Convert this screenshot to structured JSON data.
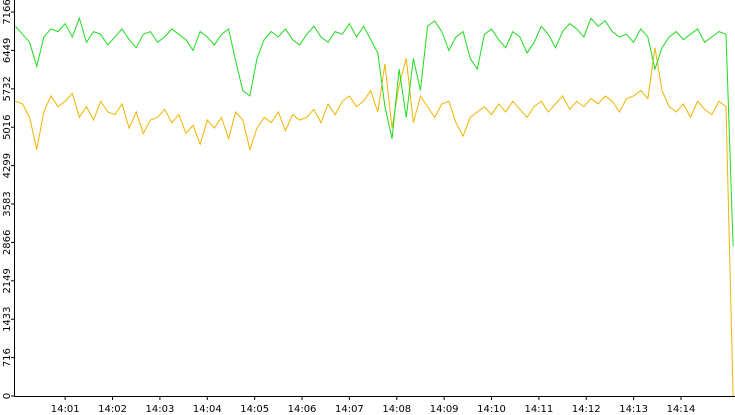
{
  "chart_data": {
    "type": "line",
    "x": [
      -0.05,
      0.1,
      0.25,
      0.4,
      0.55,
      0.7,
      0.85,
      1,
      1.15,
      1.3,
      1.45,
      1.6,
      1.75,
      1.9,
      2.05,
      2.2,
      2.35,
      2.5,
      2.65,
      2.8,
      2.95,
      3.1,
      3.25,
      3.4,
      3.55,
      3.7,
      3.85,
      4,
      4.15,
      4.3,
      4.45,
      4.6,
      4.75,
      4.9,
      5.05,
      5.2,
      5.35,
      5.5,
      5.65,
      5.8,
      5.95,
      6.1,
      6.25,
      6.4,
      6.55,
      6.7,
      6.85,
      7,
      7.15,
      7.3,
      7.45,
      7.6,
      7.75,
      7.9,
      8.05,
      8.2,
      8.35,
      8.5,
      8.65,
      8.8,
      8.95,
      9.1,
      9.25,
      9.4,
      9.55,
      9.7,
      9.85,
      10,
      10.15,
      10.3,
      10.45,
      10.6,
      10.75,
      10.9,
      11.05,
      11.2,
      11.35,
      11.5,
      11.65,
      11.8,
      11.95,
      12.1,
      12.25,
      12.4,
      12.55,
      12.7,
      12.85,
      13,
      13.15,
      13.3,
      13.45,
      13.6,
      13.75,
      13.9,
      14.05,
      14.2,
      14.35,
      14.5,
      14.65,
      14.8,
      14.95,
      15.1
    ],
    "series": [
      {
        "color": "#f0b400",
        "values": [
          5500,
          5450,
          5200,
          4600,
          5300,
          5600,
          5400,
          5500,
          5650,
          5200,
          5400,
          5150,
          5500,
          5300,
          5250,
          5450,
          5000,
          5300,
          4900,
          5150,
          5200,
          5350,
          5100,
          5250,
          4900,
          5050,
          4700,
          5150,
          5000,
          5200,
          4800,
          5300,
          5150,
          4600,
          5000,
          5200,
          5100,
          5300,
          4950,
          5250,
          5150,
          5200,
          5350,
          5100,
          5450,
          5250,
          5500,
          5600,
          5400,
          5500,
          5700,
          5300,
          6200,
          5000,
          5800,
          6300,
          5100,
          5600,
          5400,
          5200,
          5450,
          5500,
          5100,
          4850,
          5200,
          5300,
          5400,
          5250,
          5450,
          5300,
          5500,
          5350,
          5200,
          5400,
          5500,
          5300,
          5450,
          5600,
          5350,
          5500,
          5400,
          5550,
          5450,
          5600,
          5500,
          5300,
          5550,
          5600,
          5700,
          5550,
          6500,
          5700,
          5400,
          5300,
          5450,
          5200,
          5500,
          5350,
          5250,
          5500,
          5400,
          0
        ]
      },
      {
        "color": "#1edc1e",
        "values": [
          6900,
          6750,
          6600,
          6150,
          6700,
          6850,
          6800,
          6950,
          6700,
          7050,
          6600,
          6800,
          6750,
          6550,
          6700,
          6850,
          6650,
          6500,
          6750,
          6800,
          6600,
          6700,
          6850,
          6750,
          6650,
          6450,
          6800,
          6700,
          6550,
          6750,
          6850,
          6250,
          5700,
          5600,
          6300,
          6650,
          6800,
          6700,
          6850,
          6650,
          6550,
          6750,
          6900,
          6700,
          6600,
          6800,
          6750,
          6950,
          6700,
          6900,
          6650,
          6400,
          5400,
          4800,
          6100,
          5200,
          6300,
          5700,
          6900,
          7000,
          6800,
          6450,
          6700,
          6800,
          6300,
          6100,
          6750,
          6850,
          6650,
          6500,
          6800,
          6700,
          6400,
          6600,
          6900,
          6750,
          6500,
          6800,
          6950,
          6850,
          6700,
          7050,
          6900,
          7000,
          6800,
          6700,
          6750,
          6600,
          6850,
          6700,
          6100,
          6500,
          6700,
          6800,
          6650,
          6750,
          6850,
          6600,
          6700,
          6800,
          6750,
          2800
        ]
      }
    ],
    "xlim": [
      -0.08,
      15.14
    ],
    "xticks": [
      {
        "value": 1,
        "label": "14:01"
      },
      {
        "value": 2,
        "label": "14:02"
      },
      {
        "value": 3,
        "label": "14:03"
      },
      {
        "value": 4,
        "label": "14:04"
      },
      {
        "value": 5,
        "label": "14:05"
      },
      {
        "value": 6,
        "label": "14:06"
      },
      {
        "value": 7,
        "label": "14:07"
      },
      {
        "value": 8,
        "label": "14:08"
      },
      {
        "value": 9,
        "label": "14:09"
      },
      {
        "value": 10,
        "label": "14:10"
      },
      {
        "value": 11,
        "label": "14:11"
      },
      {
        "value": 12,
        "label": "14:12"
      },
      {
        "value": 13,
        "label": "14:13"
      },
      {
        "value": 14,
        "label": "14:14"
      }
    ],
    "ylim": [
      0,
      7166
    ],
    "yticks": [
      0,
      716,
      1433,
      2149,
      2866,
      3583,
      4299,
      5016,
      5732,
      6449,
      7166
    ]
  }
}
